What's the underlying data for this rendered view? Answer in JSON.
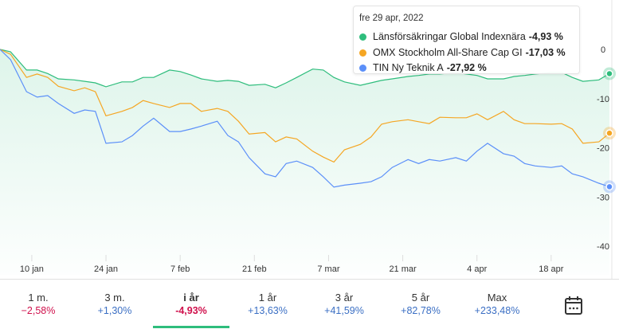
{
  "tooltip": {
    "date": "fre 29 apr, 2022",
    "items": [
      {
        "name": "Länsförsäkringar Global Indexnära",
        "value": "-4,93 %",
        "color": "#2ebd7c"
      },
      {
        "name": "OMX Stockholm All-Share Cap GI",
        "value": "-17,03 %",
        "color": "#f5a623"
      },
      {
        "name": "TIN Ny Teknik A",
        "value": "-27,92 %",
        "color": "#5b8ff9"
      }
    ]
  },
  "periods": [
    {
      "label": "1 m.",
      "value": "−2,58%",
      "color": "#d0104c"
    },
    {
      "label": "3 m.",
      "value": "+1,30%",
      "color": "#3b6fc4"
    },
    {
      "label": "i år",
      "value": "-4,93%",
      "color": "#d0104c",
      "active": true
    },
    {
      "label": "1 år",
      "value": "+13,63%",
      "color": "#3b6fc4"
    },
    {
      "label": "3 år",
      "value": "+41,59%",
      "color": "#3b6fc4"
    },
    {
      "label": "5 år",
      "value": "+82,78%",
      "color": "#3b6fc4"
    },
    {
      "label": "Max",
      "value": "+233,48%",
      "color": "#3b6fc4"
    }
  ],
  "calendar_icon": "calendar-icon",
  "chart_data": {
    "type": "line",
    "x_range": [
      "2022-01-04",
      "2022-04-29"
    ],
    "ylim": [
      -40,
      0
    ],
    "y_ticks": [
      0,
      -10,
      -20,
      -30,
      -40
    ],
    "y_tick_labels": [
      "0",
      "-10",
      "-20",
      "-30",
      "-40"
    ],
    "x_ticks": [
      {
        "date": "2022-01-10",
        "label": "10 jan"
      },
      {
        "date": "2022-01-24",
        "label": "24 jan"
      },
      {
        "date": "2022-02-07",
        "label": "7 feb"
      },
      {
        "date": "2022-02-21",
        "label": "21 feb"
      },
      {
        "date": "2022-03-07",
        "label": "7 mar"
      },
      {
        "date": "2022-03-21",
        "label": "21 mar"
      },
      {
        "date": "2022-04-04",
        "label": "4 apr"
      },
      {
        "date": "2022-04-18",
        "label": "18 apr"
      }
    ],
    "grid": false,
    "x": [
      "2022-01-04",
      "2022-01-06",
      "2022-01-09",
      "2022-01-11",
      "2022-01-13",
      "2022-01-15",
      "2022-01-18",
      "2022-01-20",
      "2022-01-22",
      "2022-01-24",
      "2022-01-27",
      "2022-01-29",
      "2022-01-31",
      "2022-02-02",
      "2022-02-05",
      "2022-02-07",
      "2022-02-09",
      "2022-02-11",
      "2022-02-14",
      "2022-02-16",
      "2022-02-18",
      "2022-02-20",
      "2022-02-23",
      "2022-02-25",
      "2022-02-27",
      "2022-03-01",
      "2022-03-04",
      "2022-03-06",
      "2022-03-08",
      "2022-03-10",
      "2022-03-13",
      "2022-03-15",
      "2022-03-17",
      "2022-03-19",
      "2022-03-22",
      "2022-03-24",
      "2022-03-26",
      "2022-03-28",
      "2022-03-31",
      "2022-04-02",
      "2022-04-04",
      "2022-04-06",
      "2022-04-09",
      "2022-04-11",
      "2022-04-13",
      "2022-04-15",
      "2022-04-18",
      "2022-04-20",
      "2022-04-22",
      "2022-04-24",
      "2022-04-27",
      "2022-04-29"
    ],
    "series": [
      {
        "name": "Länsförsäkringar Global Indexnära",
        "color": "#2ebd7c",
        "area": true,
        "values": [
          0,
          -0.5,
          -4.2,
          -4.2,
          -4.9,
          -6.0,
          -6.2,
          -6.5,
          -6.8,
          -7.6,
          -6.6,
          -6.6,
          -5.7,
          -5.7,
          -4.2,
          -4.5,
          -5.2,
          -6.0,
          -6.5,
          -6.3,
          -6.5,
          -7.3,
          -7.1,
          -7.8,
          -6.8,
          -5.7,
          -4.0,
          -4.2,
          -5.7,
          -6.6,
          -7.3,
          -6.8,
          -6.3,
          -6.0,
          -5.5,
          -5.3,
          -5.0,
          -5.0,
          -4.7,
          -5.0,
          -5.3,
          -6.0,
          -6.0,
          -5.5,
          -5.3,
          -5.0,
          -4.7,
          -4.7,
          -5.7,
          -6.5,
          -6.2,
          -4.93
        ]
      },
      {
        "name": "OMX Stockholm All-Share Cap GI",
        "color": "#f5a623",
        "values": [
          0,
          -1.0,
          -5.7,
          -5.0,
          -5.7,
          -7.5,
          -8.4,
          -7.8,
          -8.6,
          -13.5,
          -12.6,
          -11.8,
          -10.4,
          -11.0,
          -11.8,
          -11.0,
          -11.0,
          -12.6,
          -12.0,
          -12.6,
          -14.6,
          -17.2,
          -16.9,
          -18.8,
          -17.8,
          -18.2,
          -20.7,
          -21.9,
          -22.9,
          -20.4,
          -19.3,
          -17.8,
          -15.2,
          -14.7,
          -14.3,
          -14.7,
          -15.1,
          -13.8,
          -13.9,
          -13.9,
          -13.1,
          -14.3,
          -12.6,
          -14.3,
          -15.1,
          -15.1,
          -15.2,
          -15.1,
          -16.2,
          -19.1,
          -18.8,
          -17.03
        ]
      },
      {
        "name": "TIN Ny Teknik A",
        "color": "#5b8ff9",
        "values": [
          0,
          -2.1,
          -8.6,
          -9.7,
          -9.4,
          -11.0,
          -13.0,
          -12.3,
          -12.6,
          -19.1,
          -18.8,
          -17.5,
          -15.6,
          -14.0,
          -16.7,
          -16.7,
          -16.2,
          -15.6,
          -14.6,
          -17.5,
          -18.8,
          -22.0,
          -25.3,
          -25.9,
          -23.2,
          -22.7,
          -24.0,
          -25.9,
          -28.0,
          -27.6,
          -27.2,
          -26.9,
          -25.9,
          -24.0,
          -22.4,
          -23.2,
          -22.4,
          -22.7,
          -22.0,
          -22.7,
          -20.7,
          -19.1,
          -21.2,
          -21.7,
          -23.2,
          -23.7,
          -24.0,
          -23.7,
          -25.3,
          -25.9,
          -27.2,
          -27.92
        ]
      }
    ]
  }
}
